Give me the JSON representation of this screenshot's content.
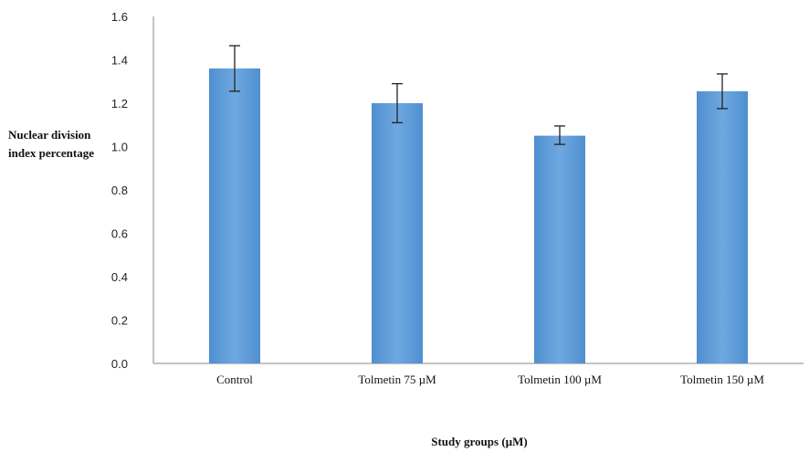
{
  "chart_data": {
    "type": "bar",
    "categories": [
      "Control",
      "Tolmetin 75 µM",
      "Tolmetin 100 µM",
      "Tolmetin 150 µM"
    ],
    "values": [
      1.36,
      1.2,
      1.05,
      1.255
    ],
    "error_low": [
      1.255,
      1.11,
      1.01,
      1.175
    ],
    "error_high": [
      1.465,
      1.29,
      1.095,
      1.335
    ],
    "ylabel_line1": "Nuclear division",
    "ylabel_line2": "index percentage",
    "xlabel": "Study groups (µM)",
    "ylim": [
      0,
      1.6
    ],
    "yticks": [
      "0.0",
      "0.2",
      "0.4",
      "0.6",
      "0.8",
      "1.0",
      "1.2",
      "1.4",
      "1.6"
    ],
    "grid": false,
    "bar_color": "#5b9bd5"
  }
}
